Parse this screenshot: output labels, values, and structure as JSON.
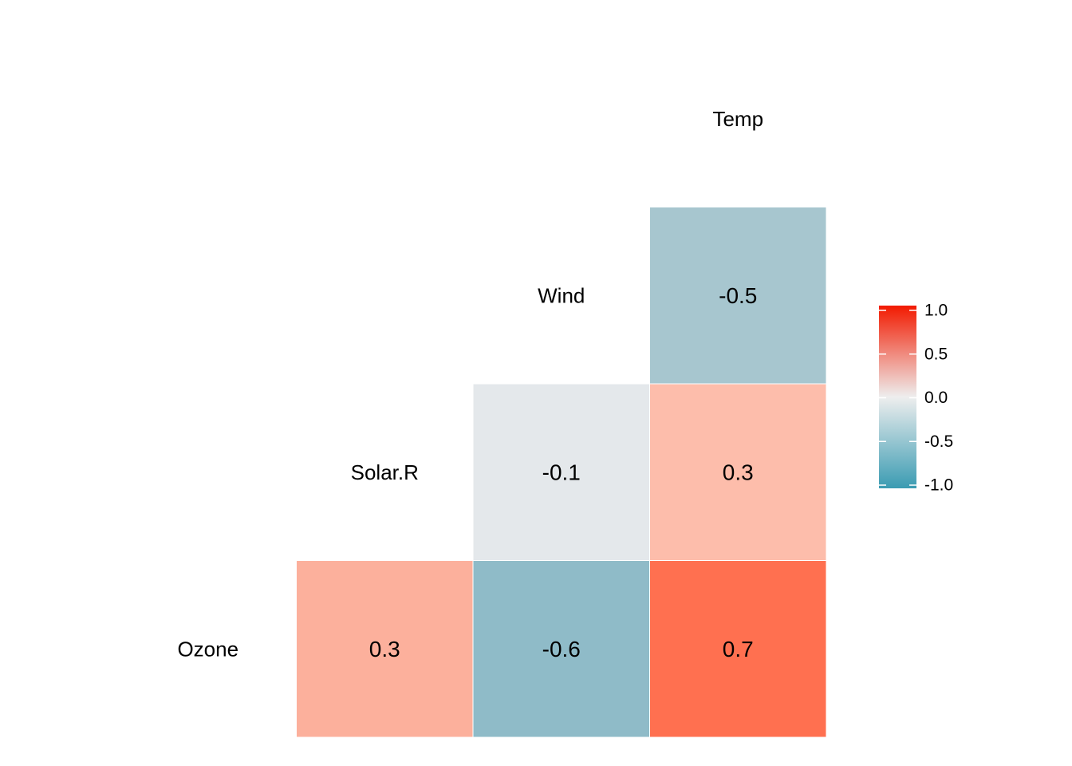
{
  "chart_data": {
    "type": "heatmap",
    "variables": [
      "Ozone",
      "Solar.R",
      "Wind",
      "Temp"
    ],
    "cells": [
      {
        "row": "Ozone",
        "col": "Solar.R",
        "value": 0.3,
        "label": "0.3",
        "color": "#fcb09c"
      },
      {
        "row": "Ozone",
        "col": "Wind",
        "value": -0.6,
        "label": "-0.6",
        "color": "#8fbbc8"
      },
      {
        "row": "Ozone",
        "col": "Temp",
        "value": 0.7,
        "label": "0.7",
        "color": "#ff7050"
      },
      {
        "row": "Solar.R",
        "col": "Wind",
        "value": -0.1,
        "label": "-0.1",
        "color": "#e4e8eb"
      },
      {
        "row": "Solar.R",
        "col": "Temp",
        "value": 0.3,
        "label": "0.3",
        "color": "#fdbdab"
      },
      {
        "row": "Wind",
        "col": "Temp",
        "value": -0.5,
        "label": "-0.5",
        "color": "#a7c6cf"
      }
    ],
    "legend": {
      "placement": "right",
      "range": [
        -1,
        1
      ],
      "ticks": [
        1.0,
        0.5,
        0.0,
        -0.5,
        -1.0
      ],
      "tick_labels": [
        "1.0",
        "0.5",
        "0.0",
        "-0.5",
        "-1.0"
      ],
      "colors": {
        "low": "#3a9bb2",
        "mid": "#eeeeee",
        "high": "#f21a00"
      }
    },
    "grid": false,
    "title": "",
    "xlabel": "",
    "ylabel": ""
  }
}
